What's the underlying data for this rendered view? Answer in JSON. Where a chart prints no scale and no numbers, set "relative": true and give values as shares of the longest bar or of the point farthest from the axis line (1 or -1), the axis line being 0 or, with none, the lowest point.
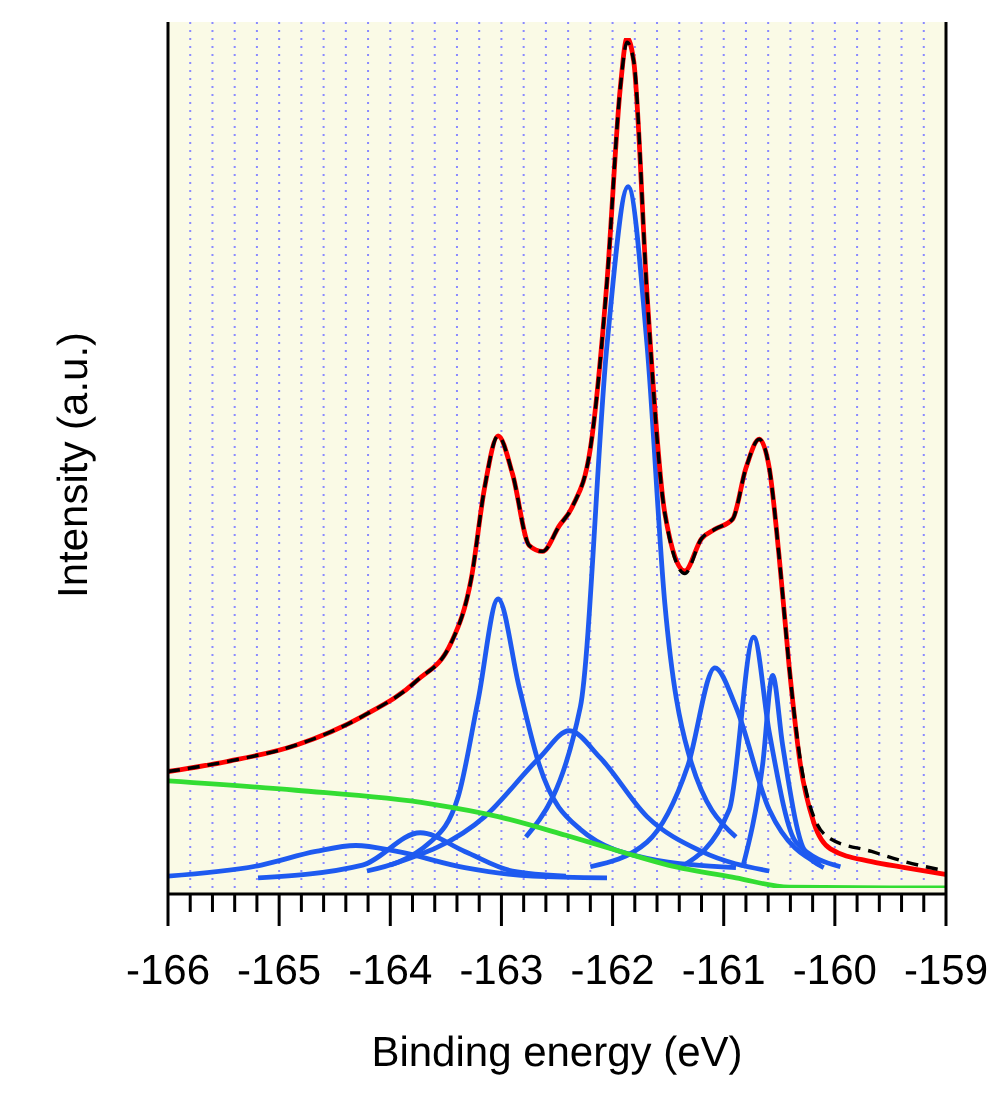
{
  "chart_data": {
    "type": "line",
    "xlabel": "Binding energy (eV)",
    "ylabel": "Intensity (a.u.)",
    "relative": true,
    "grid": "x",
    "marker": "none",
    "xlim": [
      -166,
      -159
    ],
    "xticks": [
      -166,
      {
        "value": -165.8,
        "label": null
      },
      {
        "value": -165.6,
        "label": null
      },
      {
        "value": -165.4,
        "label": null
      },
      {
        "value": -165.2,
        "label": null
      },
      -165,
      {
        "value": -164.8,
        "label": null
      },
      {
        "value": -164.6,
        "label": null
      },
      {
        "value": -164.4,
        "label": null
      },
      {
        "value": -164.2,
        "label": null
      },
      -164,
      {
        "value": -163.8,
        "label": null
      },
      {
        "value": -163.6,
        "label": null
      },
      {
        "value": -163.4,
        "label": null
      },
      {
        "value": -163.2,
        "label": null
      },
      -163,
      {
        "value": -162.8,
        "label": null
      },
      {
        "value": -162.6,
        "label": null
      },
      {
        "value": -162.4,
        "label": null
      },
      {
        "value": -162.2,
        "label": null
      },
      -162,
      {
        "value": -161.8,
        "label": null
      },
      {
        "value": -161.6,
        "label": null
      },
      {
        "value": -161.4,
        "label": null
      },
      {
        "value": -161.2,
        "label": null
      },
      -161,
      {
        "value": -160.8,
        "label": null
      },
      {
        "value": -160.6,
        "label": null
      },
      {
        "value": -160.4,
        "label": null
      },
      {
        "value": -160.2,
        "label": null
      },
      -160,
      {
        "value": -159.8,
        "label": null
      },
      {
        "value": -159.6,
        "label": null
      },
      {
        "value": -159.4,
        "label": null
      },
      {
        "value": -159.2,
        "label": null
      },
      -159
    ],
    "series": [
      {
        "color": "#1e5af0",
        "x": [
          -166,
          -165.16,
          -164.67,
          -164.31,
          -163.94,
          -163.33,
          -162.72,
          -162.05
        ],
        "values": [
          0.014,
          0.027,
          0.043,
          0.05,
          0.043,
          0.024,
          0.014,
          0.012
        ]
      },
      {
        "color": "#1e5af0",
        "x": [
          -165.19,
          -164.25,
          -163.73,
          -163.33,
          -162.9,
          -162.42
        ],
        "values": [
          0.012,
          0.027,
          0.065,
          0.043,
          0.02,
          0.014
        ]
      },
      {
        "color": "#1e5af0",
        "x": [
          -164.21,
          -163.64,
          -163.39,
          -163.21,
          -163.03,
          -162.84,
          -162.66,
          -162.29,
          -161.69,
          -160.89
        ],
        "values": [
          0.02,
          0.054,
          0.107,
          0.221,
          0.34,
          0.236,
          0.145,
          0.069,
          0.035,
          0.024
        ]
      },
      {
        "color": "#1e5af0",
        "x": [
          -164,
          -163.15,
          -162.66,
          -162.39,
          -162.11,
          -161.69,
          -161.2,
          -160.59
        ],
        "values": [
          0.027,
          0.084,
          0.153,
          0.185,
          0.153,
          0.084,
          0.043,
          0.02
        ]
      },
      {
        "color": "#1e5af0",
        "x": [
          -162.78,
          -162.29,
          -162.05,
          -161.86,
          -161.69,
          -161.53,
          -161.32,
          -160.89
        ],
        "values": [
          0.06,
          0.213,
          0.639,
          0.825,
          0.639,
          0.335,
          0.16,
          0.06
        ]
      },
      {
        "color": "#1e5af0",
        "x": [
          -162.2,
          -161.69,
          -161.32,
          -161.08,
          -160.89,
          -160.59,
          -160.13
        ],
        "values": [
          0.025,
          0.054,
          0.145,
          0.259,
          0.213,
          0.092,
          0.027
        ]
      },
      {
        "color": "#1e5af0",
        "x": [
          -161.38,
          -160.95,
          -160.73,
          -160.59,
          -160.35,
          -159.95
        ],
        "values": [
          0.025,
          0.092,
          0.295,
          0.183,
          0.054,
          0.025
        ]
      },
      {
        "color": "#1e5af0",
        "x": [
          -160.83,
          -160.65,
          -160.56,
          -160.47,
          -160.28,
          -160.1
        ],
        "values": [
          0.024,
          0.145,
          0.25,
          0.168,
          0.046,
          0.024
        ]
      },
      {
        "color": "#33dd33",
        "x": [
          -166,
          -164.85,
          -163.64,
          -163.03,
          -162.42,
          -161.93,
          -161.5,
          -160.89,
          -160.41,
          -159
        ],
        "values": [
          0.126,
          0.115,
          0.099,
          0.084,
          0.062,
          0.043,
          0.027,
          0.012,
          0.001,
          0
        ]
      },
      {
        "color": "#ff0000",
        "x": [
          -166,
          -165.46,
          -164.85,
          -164.25,
          -163.76,
          -163.45,
          -163.27,
          -163.15,
          -163.03,
          -162.9,
          -162.75,
          -162.63,
          -162.48,
          -162.36,
          -162.2,
          -162.05,
          -161.93,
          -161.87,
          -161.81,
          -161.69,
          -161.53,
          -161.35,
          -161.2,
          -161.08,
          -160.92,
          -160.8,
          -160.68,
          -160.59,
          -160.5,
          -160.41,
          -160.31,
          -160.19,
          -160.04,
          -159.67,
          -159.37,
          -159
        ],
        "values": [
          0.137,
          0.149,
          0.168,
          0.202,
          0.244,
          0.289,
          0.365,
          0.472,
          0.532,
          0.487,
          0.403,
          0.396,
          0.426,
          0.449,
          0.517,
          0.714,
          0.942,
          1,
          0.973,
          0.699,
          0.441,
          0.373,
          0.411,
          0.422,
          0.434,
          0.494,
          0.528,
          0.494,
          0.388,
          0.259,
          0.145,
          0.077,
          0.046,
          0.031,
          0.024,
          0.016
        ]
      },
      {
        "color": "#000000",
        "line_style": "dashed",
        "x": [
          -166,
          -165.46,
          -164.85,
          -164.25,
          -163.76,
          -163.45,
          -163.27,
          -163.15,
          -163.03,
          -162.9,
          -162.75,
          -162.63,
          -162.48,
          -162.36,
          -162.2,
          -162.05,
          -161.93,
          -161.87,
          -161.81,
          -161.69,
          -161.53,
          -161.35,
          -161.2,
          -161.08,
          -160.92,
          -160.8,
          -160.68,
          -160.59,
          -160.5,
          -160.41,
          -160.31,
          -160.19,
          -160.04,
          -159.67,
          -159.37,
          -159
        ],
        "values": [
          0.137,
          0.149,
          0.168,
          0.202,
          0.244,
          0.289,
          0.365,
          0.472,
          0.532,
          0.487,
          0.403,
          0.396,
          0.426,
          0.449,
          0.517,
          0.714,
          0.942,
          0.995,
          0.973,
          0.699,
          0.441,
          0.37,
          0.411,
          0.422,
          0.434,
          0.494,
          0.528,
          0.494,
          0.388,
          0.259,
          0.15,
          0.084,
          0.058,
          0.043,
          0.031,
          0.02
        ]
      }
    ]
  }
}
